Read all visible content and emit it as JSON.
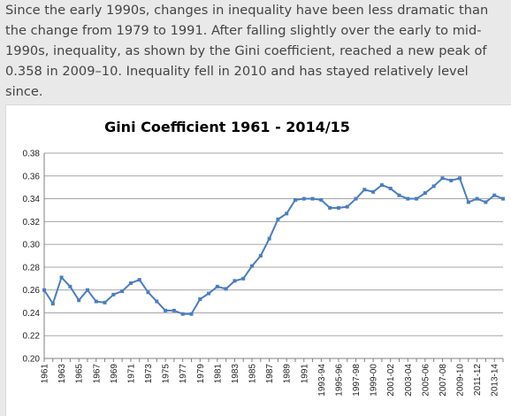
{
  "intro_text": "Since the early 1990s, changes in inequality have been less dramatic than the change from 1979 to 1991. After falling slightly over the early to mid-1990s, inequality, as shown by the Gini coefficient, reached a new peak of 0.358 in 2009–10. Inequality fell in 2010 and has stayed relatively level since.",
  "colors": {
    "line": "#4a7dbf",
    "marker": "#4a7dbf",
    "grid": "#a6a6a6",
    "axis": "#7f7f7f"
  },
  "chart_data": {
    "type": "line",
    "title": "Gini Coefficient 1961 - 2014/15",
    "xlabel": "",
    "ylabel": "",
    "ylim": [
      0.2,
      0.38
    ],
    "yticks": [
      "0.20",
      "0.22",
      "0.24",
      "0.26",
      "0.28",
      "0.30",
      "0.32",
      "0.34",
      "0.36",
      "0.38"
    ],
    "grid": "horizontal",
    "legend": "none",
    "categories": [
      "1961",
      "1962",
      "1963",
      "1964",
      "1965",
      "1966",
      "1967",
      "1968",
      "1969",
      "1970",
      "1971",
      "1972",
      "1973",
      "1974",
      "1975",
      "1976",
      "1977",
      "1978",
      "1979",
      "1980",
      "1981",
      "1982",
      "1983",
      "1984",
      "1985",
      "1986",
      "1987",
      "1988",
      "1989",
      "1990",
      "1991",
      "1992",
      "1993-94",
      "1994-95",
      "1995-96",
      "1996-97",
      "1997-98",
      "1998-99",
      "1999-00",
      "2000-01",
      "2001-02",
      "2002-03",
      "2003-04",
      "2004-05",
      "2005-06",
      "2006-07",
      "2007-08",
      "2008-09",
      "2009-10",
      "2010-11",
      "2011-12",
      "2012-13",
      "2013-14",
      "2014-15"
    ],
    "shown_xtick_labels": [
      "1961",
      "1963",
      "1965",
      "1967",
      "1969",
      "1971",
      "1973",
      "1975",
      "1977",
      "1979",
      "1981",
      "1983",
      "1985",
      "1987",
      "1989",
      "1991",
      "1993-94",
      "1995-96",
      "1997-98",
      "1999-00",
      "2001-02",
      "2003-04",
      "2005-06",
      "2007-08",
      "2009-10",
      "2011-12",
      "2013-14"
    ],
    "series": [
      {
        "name": "",
        "values": [
          0.26,
          0.248,
          0.271,
          0.263,
          0.251,
          0.26,
          0.25,
          0.249,
          0.256,
          0.259,
          0.266,
          0.269,
          0.258,
          0.25,
          0.242,
          0.242,
          0.239,
          0.239,
          0.252,
          0.257,
          0.263,
          0.261,
          0.268,
          0.27,
          0.281,
          0.29,
          0.305,
          0.322,
          0.327,
          0.339,
          0.34,
          0.34,
          0.339,
          0.332,
          0.332,
          0.333,
          0.34,
          0.348,
          0.346,
          0.352,
          0.349,
          0.343,
          0.34,
          0.34,
          0.345,
          0.351,
          0.358,
          0.356,
          0.358,
          0.337,
          0.34,
          0.337,
          0.343,
          0.34
        ]
      }
    ]
  }
}
